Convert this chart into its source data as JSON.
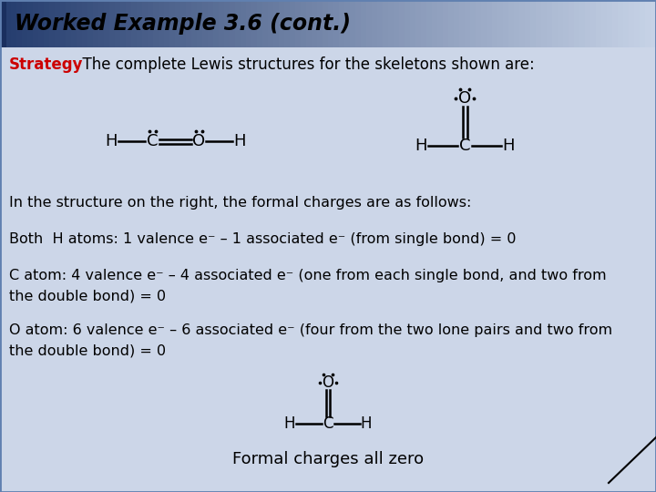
{
  "title": "Worked Example 3.6 (cont.)",
  "header_bg_left": "#253d6e",
  "header_bg_right": "#c8d4e8",
  "content_bg": "#ccd6e8",
  "border_color": "#4a6a9b",
  "title_color": "#000000",
  "strategy_color": "#cc0000",
  "text_color": "#000000",
  "strategy_word": "Strategy",
  "strategy_text": "  The complete Lewis structures for the skeletons shown are:",
  "line1": "In the structure on the right, the formal charges are as follows:",
  "line2": "Both  H atoms: 1 valence e⁻ – 1 associated e⁻ (from single bond) = 0",
  "line3a": "C atom: 4 valence e⁻ – 4 associated e⁻ (one from each single bond, and two from",
  "line3b": "the double bond) = 0",
  "line4a": "O atom: 6 valence e⁻ – 6 associated e⁻ (four from the two lone pairs and two from",
  "line4b": "the double bond) = 0",
  "caption": "Formal charges all zero"
}
